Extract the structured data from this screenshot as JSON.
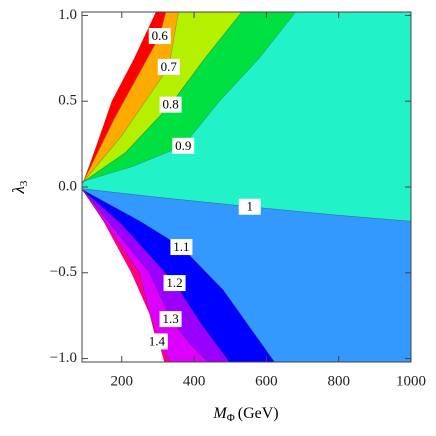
{
  "chart_data": {
    "type": "contour",
    "xlabel": [
      "M",
      "Φ",
      "(GeV)"
    ],
    "ylabel": [
      "λ",
      "3"
    ],
    "xlim": [
      90,
      1000
    ],
    "ylim": [
      -1.02,
      1.02
    ],
    "xticks": [
      200,
      400,
      600,
      800,
      1000
    ],
    "yticks": [
      {
        "value": 1.0,
        "label": "1.0"
      },
      {
        "value": 0.5,
        "label": "0.5"
      },
      {
        "value": 0.0,
        "label": "0.0"
      },
      {
        "value": -0.5,
        "label": "−0.5"
      },
      {
        "value": -1.0,
        "label": "−1.0"
      }
    ],
    "boundaries": [
      {
        "x": [
          90,
          110,
          132,
          173,
          235,
          295
        ],
        "y": [
          0.01,
          0.12,
          0.25,
          0.5,
          0.75,
          1.02
        ]
      },
      {
        "level": 0.6,
        "x": [
          90,
          180,
          305,
          322
        ],
        "y": [
          0.015,
          0.4,
          0.88,
          1.02
        ]
      },
      {
        "level": 0.7,
        "x": [
          90,
          200,
          330,
          357
        ],
        "y": [
          0.02,
          0.3,
          0.7,
          1.02
        ]
      },
      {
        "level": 0.8,
        "x": [
          90,
          210,
          335,
          430,
          532
        ],
        "y": [
          0.025,
          0.2,
          0.48,
          0.75,
          1.02
        ]
      },
      {
        "level": 0.9,
        "x": [
          90,
          230,
          370,
          470,
          580,
          681
        ],
        "y": [
          0.03,
          0.12,
          0.24,
          0.5,
          0.75,
          1.02
        ]
      },
      {
        "level": 1.0,
        "x": [
          90,
          300,
          554,
          800,
          1000
        ],
        "y": [
          -0.01,
          -0.06,
          -0.115,
          -0.165,
          -0.2
        ]
      },
      {
        "level": 1.1,
        "x": [
          90,
          250,
          365,
          480,
          622
        ],
        "y": [
          -0.015,
          -0.2,
          -0.35,
          -0.6,
          -1.02
        ]
      },
      {
        "level": 1.2,
        "x": [
          90,
          200,
          346,
          420,
          497
        ],
        "y": [
          -0.015,
          -0.22,
          -0.56,
          -0.8,
          -1.02
        ]
      },
      {
        "level": 1.3,
        "x": [
          90,
          276,
          335,
          390,
          438
        ],
        "y": [
          -0.015,
          -0.5,
          -0.77,
          -0.92,
          -1.02
        ]
      },
      {
        "level": 1.4,
        "x": [
          90,
          249,
          297,
          335
        ],
        "y": [
          -0.012,
          -0.5,
          -0.9,
          -1.02
        ]
      },
      {
        "x": [
          90,
          150,
          227,
          290,
          318
        ],
        "y": [
          -0.01,
          -0.2,
          -0.5,
          -0.8,
          -1.02
        ]
      }
    ],
    "fills": [
      "#ff0000",
      "#ffaa00",
      "#b4f000",
      "#00e040",
      "#22f2c8",
      "#3399ff",
      "#0000ff",
      "#9900ff",
      "#dd00ff",
      "#ff0080"
    ]
  }
}
